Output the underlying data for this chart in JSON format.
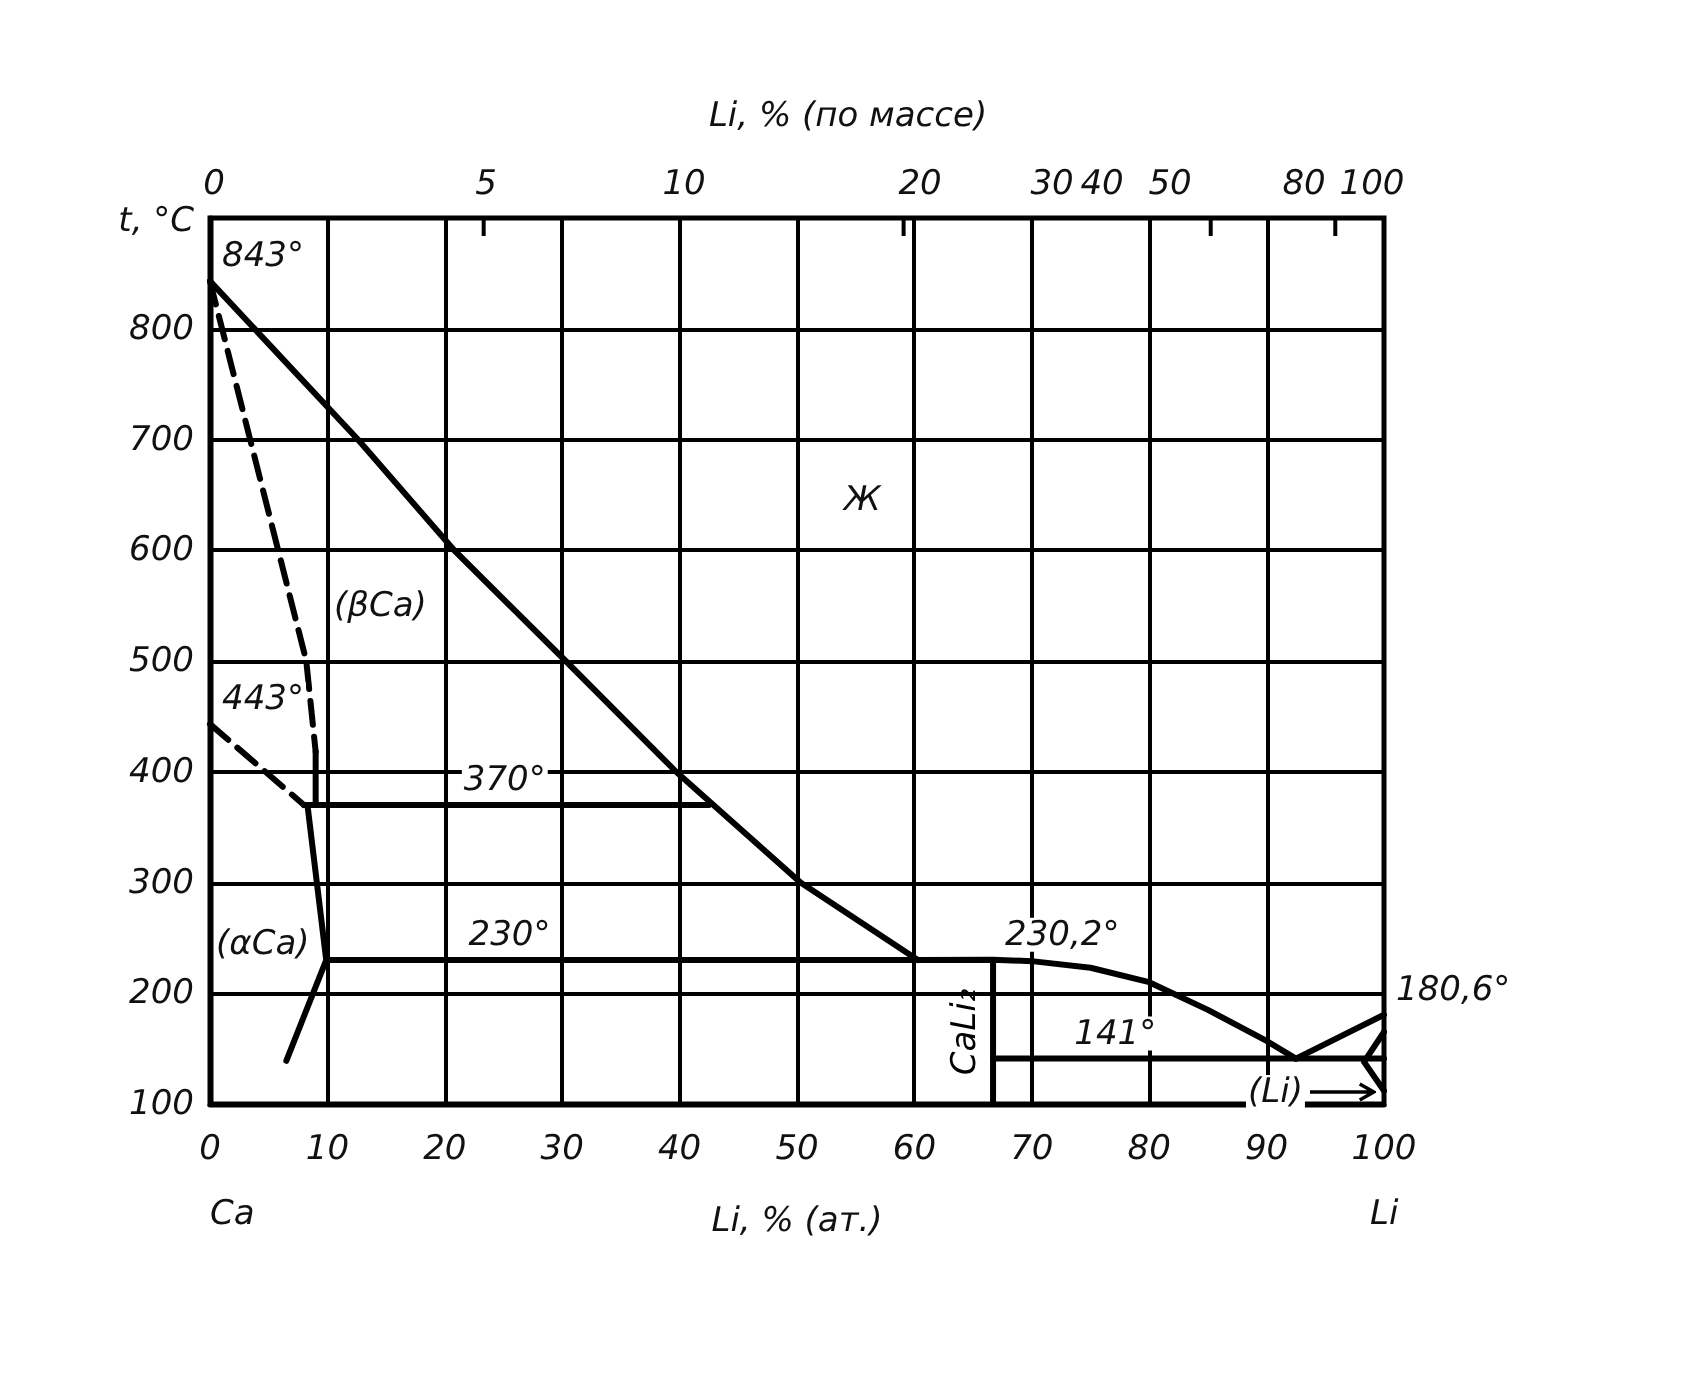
{
  "chart_data": {
    "type": "line",
    "xlabel": "Li, % (ат.)",
    "ylabel": "t, °C",
    "xlim": [
      0,
      100
    ],
    "xticks": [
      0,
      10,
      20,
      30,
      40,
      50,
      60,
      70,
      80,
      90,
      100
    ],
    "ylim": [
      100,
      900
    ],
    "yticks": [
      100,
      200,
      300,
      400,
      500,
      600,
      700,
      800
    ],
    "grid": true,
    "legend": false,
    "marker": "none",
    "line_style": "solid",
    "series": [
      {
        "color": "#000000",
        "x": [
          0,
          12.6,
          20.8,
          30.3,
          39.7,
          50.3,
          60.3
        ],
        "values": [
          843,
          700,
          600,
          500,
          400,
          300,
          230
        ]
      },
      {
        "color": "#000000",
        "x": [
          8,
          42.5
        ],
        "values": [
          370,
          370
        ]
      },
      {
        "color": "#000000",
        "x": [
          10,
          66.7
        ],
        "values": [
          230,
          230
        ]
      },
      {
        "color": "#000000",
        "x": [
          60.3,
          66.7,
          70,
          75,
          80,
          85,
          90,
          92.5
        ],
        "values": [
          230,
          230.2,
          229,
          223,
          210,
          185,
          157,
          141
        ]
      },
      {
        "name": "CaLi₂",
        "color": "#000000",
        "x": [
          66.7,
          66.7
        ],
        "values": [
          100,
          230
        ]
      },
      {
        "color": "#000000",
        "x": [
          66.7,
          100
        ],
        "values": [
          141,
          141
        ]
      },
      {
        "color": "#000000",
        "x": [
          92.5,
          100
        ],
        "values": [
          141,
          180.6
        ]
      },
      {
        "color": "#000000",
        "x": [
          100,
          98.3,
          100
        ],
        "values": [
          165,
          138,
          112
        ]
      },
      {
        "color": "#000000",
        "x": [
          6.5,
          9.9,
          8.3
        ],
        "values": [
          139,
          230,
          370
        ]
      },
      {
        "color": "#000000",
        "x": [
          9,
          9
        ],
        "values": [
          370,
          418
        ]
      },
      {
        "color": "#000000",
        "line_style": "dashed",
        "x": [
          0,
          8.2,
          9
        ],
        "values": [
          843,
          500,
          418
        ]
      },
      {
        "color": "#000000",
        "line_style": "dashed",
        "x": [
          0,
          8
        ],
        "values": [
          443,
          370
        ]
      }
    ],
    "annotations": [
      "Li, % (по массе)",
      "0",
      "5",
      "10",
      "20",
      "30",
      "40",
      "50",
      "80",
      "100",
      {
        "text": "843°",
        "x": 0,
        "y": 843
      },
      {
        "text": "443°",
        "x": 0,
        "y": 443
      },
      "(βCa)",
      "Ж",
      {
        "text": "370°",
        "x": 20.6,
        "y": 370
      },
      "(αCa)",
      {
        "text": "230°",
        "x": 21,
        "y": 230
      },
      {
        "text": "230,2°",
        "x": 66.7,
        "y": 230.2
      },
      {
        "text": "141°",
        "x": 72.6,
        "y": 141
      },
      "(Li)",
      {
        "text": "180,6°",
        "x": 100,
        "y": 180.6
      },
      "Ca",
      "Li"
    ]
  }
}
